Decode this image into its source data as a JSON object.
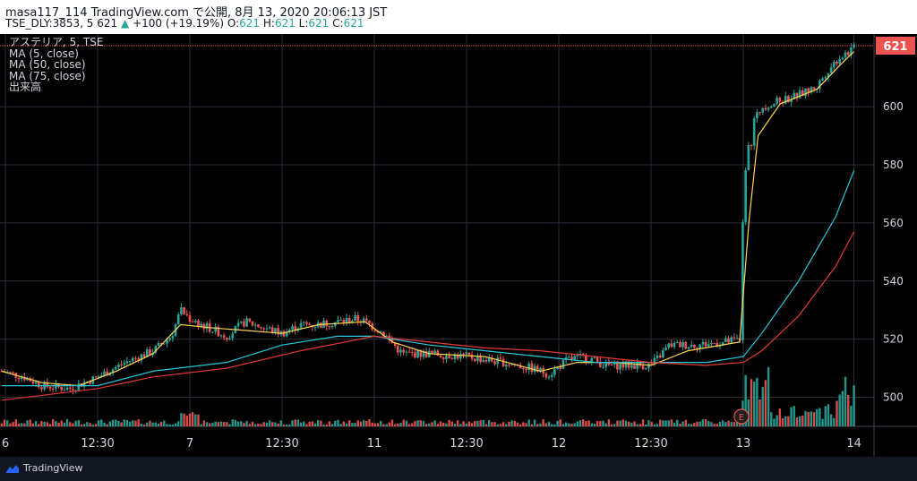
{
  "header": {
    "line1": "masa117_114 TradingView.com で公開, 8月 13, 2020 20:06:13 JST",
    "sym": "TSE_DLY:3853, 5 621",
    "change_arrow": "▲",
    "change": "+100 (+19.19%)",
    "o_label": "O:",
    "o_val": "621",
    "h_label": "H:",
    "h_val": "621",
    "l_label": "L:",
    "l_val": "621",
    "c_label": "C:",
    "c_val": "621"
  },
  "legend": {
    "symbol": "アステリア, 5, TSE",
    "ma5": "MA (5, close)",
    "ma50": "MA (50, close)",
    "ma75": "MA (75, close)",
    "volume": "出来高"
  },
  "footer": {
    "brand": "TradingView"
  },
  "colors": {
    "up": "#26a69a",
    "down": "#ef5350",
    "ma5": "#ffd54f",
    "ma50": "#26c6da",
    "ma75": "#e53935",
    "grid": "#2a2e39"
  },
  "chart_data": {
    "type": "line",
    "symbol": "アステリア",
    "interval": "5",
    "exchange": "TSE",
    "last_price": 621,
    "last_label": "621",
    "earnings_marker": "E",
    "ylim": [
      490,
      625
    ],
    "y_ticks": [
      500,
      520,
      540,
      560,
      580,
      600
    ],
    "x_labels": [
      {
        "label": "6",
        "x": 0
      },
      {
        "label": "12:30",
        "x": 0.5
      },
      {
        "label": "7",
        "x": 1
      },
      {
        "label": "12:30",
        "x": 1.5
      },
      {
        "label": "11",
        "x": 2
      },
      {
        "label": "12:30",
        "x": 2.5
      },
      {
        "label": "12",
        "x": 3
      },
      {
        "label": "12:30",
        "x": 3.5
      },
      {
        "label": "13",
        "x": 4
      },
      {
        "label": "14",
        "x": 4.6
      }
    ],
    "price_path": [
      [
        -0.02,
        509
      ],
      [
        0.1,
        507
      ],
      [
        0.2,
        504
      ],
      [
        0.35,
        503
      ],
      [
        0.5,
        507
      ],
      [
        0.65,
        512
      ],
      [
        0.8,
        516
      ],
      [
        0.9,
        521
      ],
      [
        0.95,
        530
      ],
      [
        1.0,
        527
      ],
      [
        1.1,
        524
      ],
      [
        1.2,
        521
      ],
      [
        1.3,
        526
      ],
      [
        1.4,
        524
      ],
      [
        1.5,
        522
      ],
      [
        1.6,
        525
      ],
      [
        1.7,
        525
      ],
      [
        1.8,
        526
      ],
      [
        1.9,
        527
      ],
      [
        1.95,
        526
      ],
      [
        2.0,
        524
      ],
      [
        2.05,
        522
      ],
      [
        2.15,
        515
      ],
      [
        2.3,
        515
      ],
      [
        2.5,
        514
      ],
      [
        2.7,
        512
      ],
      [
        2.85,
        510
      ],
      [
        2.95,
        508
      ],
      [
        3.05,
        513
      ],
      [
        3.15,
        514
      ],
      [
        3.25,
        511
      ],
      [
        3.4,
        511
      ],
      [
        3.5,
        511
      ],
      [
        3.6,
        518
      ],
      [
        3.75,
        518
      ],
      [
        3.9,
        519
      ],
      [
        3.99,
        520
      ],
      [
        4.0,
        575
      ],
      [
        4.03,
        585
      ],
      [
        4.06,
        595
      ],
      [
        4.1,
        600
      ],
      [
        4.2,
        602
      ],
      [
        4.3,
        604
      ],
      [
        4.4,
        607
      ],
      [
        4.45,
        612
      ],
      [
        4.52,
        617
      ],
      [
        4.6,
        620
      ]
    ],
    "series": [
      {
        "name": "MA (5, close)",
        "color": "#ffd54f",
        "values": [
          [
            -0.02,
            509
          ],
          [
            0.2,
            505
          ],
          [
            0.4,
            504
          ],
          [
            0.6,
            509
          ],
          [
            0.8,
            515
          ],
          [
            0.95,
            525
          ],
          [
            1.1,
            524
          ],
          [
            1.3,
            523
          ],
          [
            1.5,
            522
          ],
          [
            1.7,
            525
          ],
          [
            1.95,
            526
          ],
          [
            2.1,
            519
          ],
          [
            2.3,
            515
          ],
          [
            2.6,
            514
          ],
          [
            2.9,
            509
          ],
          [
            3.1,
            512
          ],
          [
            3.3,
            512
          ],
          [
            3.5,
            511
          ],
          [
            3.7,
            516
          ],
          [
            3.98,
            519
          ],
          [
            4.03,
            560
          ],
          [
            4.08,
            590
          ],
          [
            4.2,
            601
          ],
          [
            4.4,
            606
          ],
          [
            4.52,
            614
          ],
          [
            4.6,
            619
          ]
        ]
      },
      {
        "name": "MA (50, close)",
        "color": "#26c6da",
        "values": [
          [
            -0.02,
            504
          ],
          [
            0.5,
            504
          ],
          [
            0.8,
            509
          ],
          [
            1.2,
            512
          ],
          [
            1.5,
            518
          ],
          [
            1.8,
            521
          ],
          [
            2.0,
            521
          ],
          [
            2.3,
            518
          ],
          [
            2.6,
            516
          ],
          [
            2.9,
            514
          ],
          [
            3.2,
            512
          ],
          [
            3.5,
            512
          ],
          [
            3.8,
            512
          ],
          [
            4.0,
            514
          ],
          [
            4.1,
            522
          ],
          [
            4.3,
            540
          ],
          [
            4.5,
            562
          ],
          [
            4.6,
            578
          ]
        ]
      },
      {
        "name": "MA (75, close)",
        "color": "#e53935",
        "values": [
          [
            -0.02,
            499
          ],
          [
            0.5,
            503
          ],
          [
            0.8,
            507
          ],
          [
            1.2,
            510
          ],
          [
            1.6,
            516
          ],
          [
            2.0,
            521
          ],
          [
            2.3,
            519
          ],
          [
            2.6,
            517
          ],
          [
            2.9,
            516
          ],
          [
            3.2,
            514
          ],
          [
            3.5,
            512
          ],
          [
            3.8,
            511
          ],
          [
            4.0,
            512
          ],
          [
            4.1,
            516
          ],
          [
            4.3,
            528
          ],
          [
            4.5,
            545
          ],
          [
            4.6,
            557
          ]
        ]
      }
    ]
  }
}
